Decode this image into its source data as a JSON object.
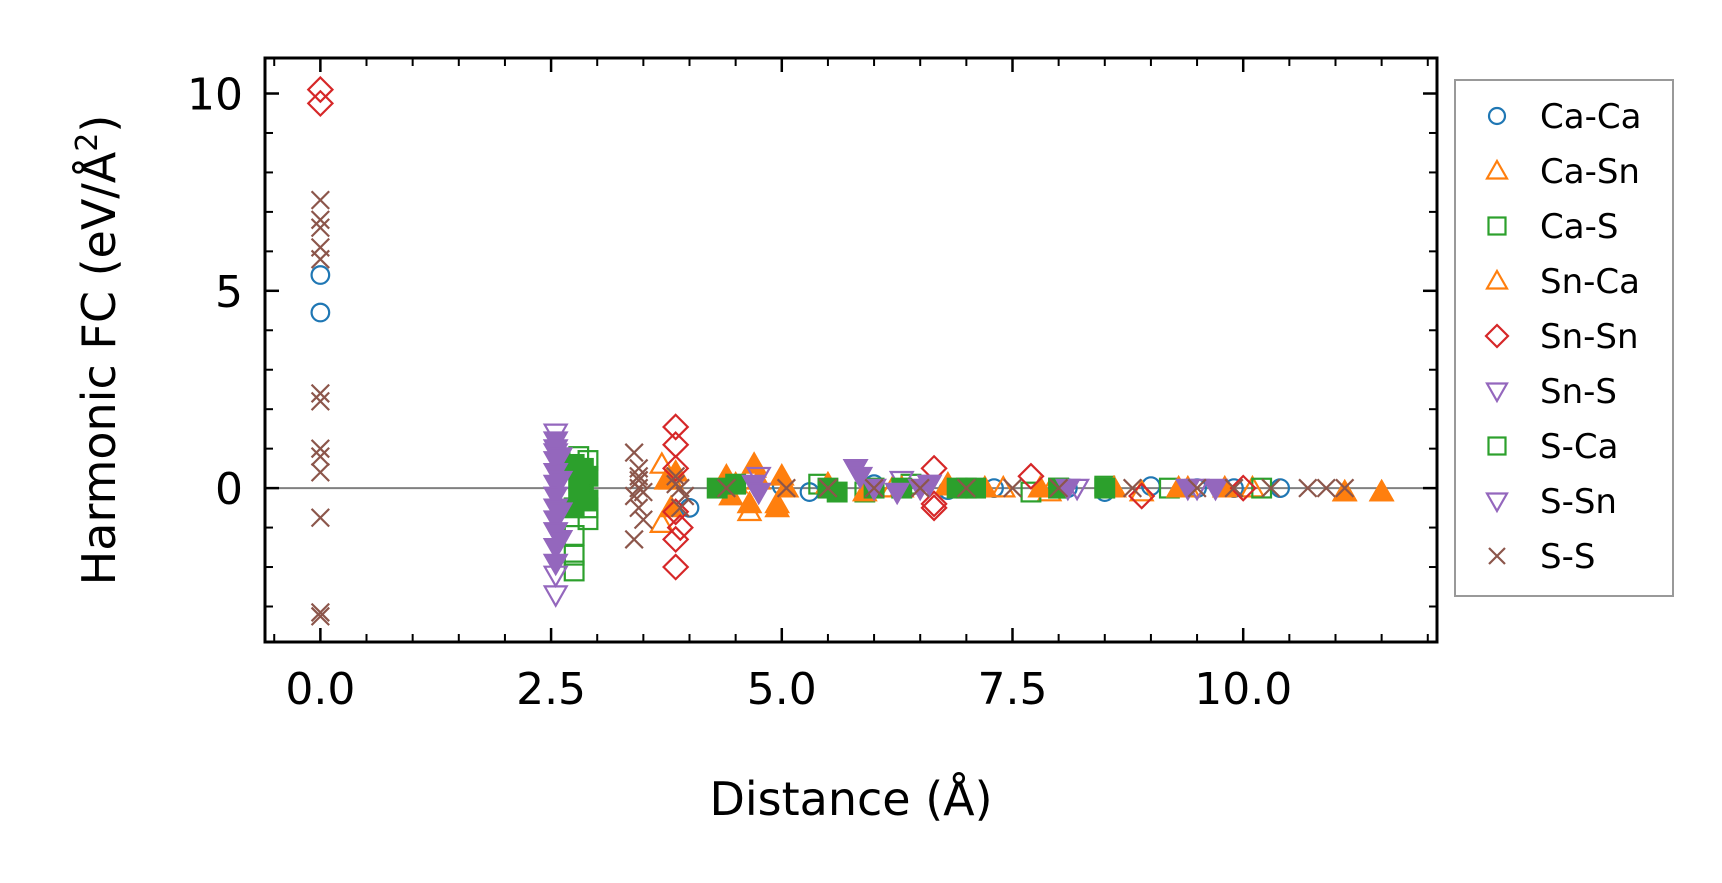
{
  "chart_data": {
    "type": "scatter",
    "title": "",
    "xlabel": "Distance (Å)",
    "ylabel_main": "Harmonic FC (eV/Å",
    "ylabel_sup": "2",
    "ylabel_close": ")",
    "xlim": [
      -0.6,
      12.1
    ],
    "ylim": [
      -3.9,
      10.9
    ],
    "xticks": [
      0,
      2.5,
      5,
      7.5,
      10
    ],
    "xtick_labels": [
      "0.0",
      "2.5",
      "5.0",
      "7.5",
      "10.0"
    ],
    "yticks": [
      0,
      5,
      10
    ],
    "ytick_labels": [
      "0",
      "5",
      "10"
    ],
    "reference_line_y": 0,
    "legend_position": "outside-right",
    "series": [
      {
        "name": "Ca-Ca",
        "marker": "circle",
        "color": "#1f77b4",
        "filled": false,
        "x": [
          0,
          0,
          4.0,
          5.0,
          5.3,
          6.0,
          6.8,
          7.3,
          8.1,
          8.5,
          9.0,
          9.5,
          9.9,
          10.4
        ],
        "y": [
          5.4,
          4.45,
          -0.5,
          0.05,
          -0.1,
          0.1,
          -0.05,
          0.0,
          0.0,
          -0.1,
          0.05,
          0.0,
          0.0,
          0.0
        ]
      },
      {
        "name": "Ca-Sn",
        "marker": "triangle-up",
        "color": "#ff7f0e",
        "filled": false,
        "x": [
          3.7,
          3.7,
          3.8,
          4.35,
          4.65,
          4.7,
          4.95,
          5.5,
          6.2,
          6.8,
          7.4,
          7.9,
          8.6,
          8.9,
          9.4,
          10.1,
          11.1,
          11.5
        ],
        "y": [
          0.6,
          -0.9,
          0.2,
          0.0,
          -0.6,
          0.5,
          -0.4,
          0.1,
          0.0,
          0.05,
          0.0,
          -0.1,
          0.0,
          -0.1,
          0.0,
          0.0,
          -0.1,
          -0.1
        ]
      },
      {
        "name": "Ca-S",
        "marker": "square",
        "color": "#2ca02c",
        "filled": false,
        "x": [
          2.75,
          2.75,
          2.8,
          2.8,
          2.85,
          2.9,
          2.9,
          2.75,
          2.8,
          2.9,
          5.4,
          5.9,
          6.4,
          7.0,
          7.7,
          8.0,
          8.5,
          9.2,
          10.2
        ],
        "y": [
          -2.1,
          -1.7,
          0.8,
          -0.3,
          0.3,
          0.7,
          -0.8,
          -1.2,
          0.5,
          -0.5,
          0.1,
          -0.1,
          0.1,
          0.0,
          -0.1,
          0.0,
          0.05,
          0.0,
          0.0
        ]
      },
      {
        "name": "Sn-Ca",
        "marker": "triangle-up",
        "color": "#ff7f0e",
        "filled": true,
        "x": [
          3.75,
          3.8,
          3.85,
          4.4,
          4.45,
          4.5,
          4.65,
          4.7,
          4.75,
          4.95,
          5.0,
          5.05,
          5.5,
          5.9,
          6.3,
          6.8,
          7.2,
          7.8,
          8.6,
          9.3,
          9.8,
          11.1,
          11.5
        ],
        "y": [
          0.2,
          -0.5,
          0.4,
          0.3,
          -0.2,
          0.1,
          -0.4,
          0.6,
          0.2,
          -0.5,
          0.3,
          0.0,
          0.1,
          -0.1,
          0.0,
          0.1,
          0.0,
          0.0,
          0.0,
          0.0,
          0.0,
          -0.1,
          -0.1
        ]
      },
      {
        "name": "Sn-Sn",
        "marker": "diamond",
        "color": "#d62728",
        "filled": false,
        "x": [
          0,
          0,
          3.85,
          3.85,
          3.85,
          3.85,
          3.85,
          3.85,
          3.9,
          6.65,
          6.65,
          6.65,
          7.7,
          8.9,
          10.0
        ],
        "y": [
          10.1,
          9.75,
          1.55,
          1.1,
          0.5,
          -0.6,
          -1.3,
          -2.0,
          -1.0,
          0.5,
          -0.5,
          -0.4,
          0.3,
          -0.2,
          0.0
        ]
      },
      {
        "name": "Sn-S",
        "marker": "triangle-down",
        "color": "#9467bd",
        "filled": false,
        "x": [
          2.55,
          2.55,
          2.55,
          2.55,
          4.75,
          5.8,
          6.3,
          6.6,
          8.2,
          9.5
        ],
        "y": [
          1.4,
          0.9,
          -2.7,
          -2.2,
          0.3,
          0.5,
          0.2,
          0.1,
          0.0,
          0.0
        ]
      },
      {
        "name": "S-Ca",
        "marker": "square",
        "color": "#2ca02c",
        "filled": true,
        "x": [
          2.75,
          2.8,
          2.85,
          2.9,
          2.75,
          2.85,
          2.9,
          2.8,
          4.3,
          4.5,
          5.5,
          5.6,
          6.0,
          6.3,
          6.9,
          7.1,
          8.0,
          8.5
        ],
        "y": [
          0.6,
          0.2,
          -0.1,
          0.3,
          -0.5,
          0.5,
          -0.3,
          0.0,
          0.0,
          0.1,
          0.0,
          -0.1,
          0.0,
          0.0,
          0.0,
          0.0,
          0.0,
          0.0
        ]
      },
      {
        "name": "S-Sn",
        "marker": "triangle-down",
        "color": "#9467bd",
        "filled": true,
        "x": [
          2.55,
          2.55,
          2.55,
          2.55,
          2.55,
          2.55,
          2.55,
          2.55,
          2.55,
          2.55,
          2.55,
          2.6,
          2.6,
          2.6,
          2.6,
          4.7,
          4.75,
          5.8,
          5.85,
          6.0,
          6.25,
          6.5,
          6.6,
          8.1,
          9.4,
          9.7
        ],
        "y": [
          1.2,
          1.0,
          0.7,
          0.4,
          0.1,
          -0.2,
          -0.5,
          -0.8,
          -1.1,
          -1.5,
          -1.9,
          0.8,
          0.2,
          -0.6,
          -1.3,
          0.1,
          -0.1,
          0.5,
          0.3,
          0.0,
          -0.1,
          0.0,
          0.1,
          0.0,
          0.0,
          0.0
        ]
      },
      {
        "name": "S-S",
        "marker": "x",
        "color": "#8c564b",
        "filled": false,
        "x": [
          0,
          0,
          0,
          0,
          0,
          0,
          0,
          0,
          0,
          0,
          0,
          0,
          0,
          3.4,
          3.45,
          3.45,
          3.4,
          3.45,
          3.5,
          3.4,
          3.45,
          3.5,
          3.45,
          3.85,
          3.9,
          3.95,
          3.9,
          3.85,
          4.4,
          5.05,
          5.5,
          6.0,
          6.5,
          7.0,
          7.5,
          8.0,
          8.8,
          9.5,
          9.9,
          10.3,
          10.7,
          10.9,
          11.1
        ],
        "y": [
          7.3,
          6.8,
          6.6,
          6.1,
          5.8,
          2.4,
          2.2,
          1.0,
          0.8,
          0.4,
          -0.75,
          -3.15,
          -3.25,
          0.9,
          0.5,
          0.2,
          -0.2,
          -0.5,
          -0.8,
          -1.3,
          0.0,
          -0.1,
          0.3,
          0.3,
          0.0,
          -0.2,
          -0.5,
          0.1,
          0.0,
          0.0,
          0.0,
          0.0,
          0.0,
          0.0,
          0.0,
          0.0,
          0.0,
          0.0,
          0.0,
          0.0,
          0.0,
          0.0,
          0.0
        ]
      }
    ]
  }
}
